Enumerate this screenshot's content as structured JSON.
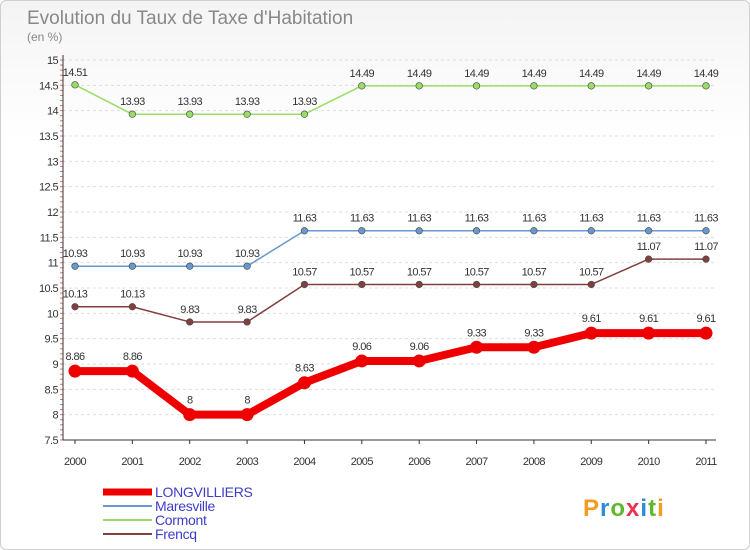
{
  "header": {
    "title": "Evolution du Taux de Taxe d'Habitation",
    "subtitle": "(en %)"
  },
  "logo": {
    "text": "Proxiti",
    "colors": [
      "#f39c1f",
      "#2e8bd8",
      "#5fb830",
      "#e8344e",
      "#2e8bd8",
      "#5fb830",
      "#f39c1f"
    ]
  },
  "chart_data": {
    "type": "line",
    "title": "Evolution du Taux de Taxe d'Habitation",
    "subtitle": "(en %)",
    "xlabel": "",
    "ylabel": "",
    "x": [
      "2000",
      "2001",
      "2002",
      "2003",
      "2004",
      "2005",
      "2006",
      "2007",
      "2008",
      "2009",
      "2010",
      "2011"
    ],
    "ylim": [
      7.5,
      15
    ],
    "yticks": [
      "7.5",
      "8",
      "8.5",
      "9",
      "9.5",
      "10",
      "10.5",
      "11",
      "11.5",
      "12",
      "12.5",
      "13",
      "13.5",
      "14",
      "14.5",
      "15"
    ],
    "grid": "horizontal dashed",
    "legend_position": "bottom-left",
    "series": [
      {
        "name": "Cormont",
        "color": "#99dd66",
        "values": [
          14.51,
          13.93,
          13.93,
          13.93,
          13.93,
          14.49,
          14.49,
          14.49,
          14.49,
          14.49,
          14.49,
          14.49
        ],
        "labels": [
          "14.51",
          "13.93",
          "13.93",
          "13.93",
          "13.93",
          "14.49",
          "14.49",
          "14.49",
          "14.49",
          "14.49",
          "14.49",
          "14.49"
        ]
      },
      {
        "name": "Maresville",
        "color": "#6699cc",
        "values": [
          10.93,
          10.93,
          10.93,
          10.93,
          11.63,
          11.63,
          11.63,
          11.63,
          11.63,
          11.63,
          11.63,
          11.63
        ],
        "labels": [
          "10.93",
          "10.93",
          "10.93",
          "10.93",
          "11.63",
          "11.63",
          "11.63",
          "11.63",
          "11.63",
          "11.63",
          "11.63",
          "11.63"
        ]
      },
      {
        "name": "Frencq",
        "color": "#804040",
        "values": [
          10.13,
          10.13,
          9.83,
          9.83,
          10.57,
          10.57,
          10.57,
          10.57,
          10.57,
          10.57,
          11.07,
          11.07
        ],
        "labels": [
          "10.13",
          "10.13",
          "9.83",
          "9.83",
          "10.57",
          "10.57",
          "10.57",
          "10.57",
          "10.57",
          "10.57",
          "11.07",
          "11.07"
        ]
      },
      {
        "name": "LONGVILLIERS",
        "color": "#ee0000",
        "values": [
          8.86,
          8.86,
          8,
          8,
          8.63,
          9.06,
          9.06,
          9.33,
          9.33,
          9.61,
          9.61,
          9.61
        ],
        "labels": [
          "8.86",
          "8.86",
          "8",
          "8",
          "8.63",
          "9.06",
          "9.06",
          "9.33",
          "9.33",
          "9.61",
          "9.61",
          "9.61"
        ]
      }
    ],
    "legend_order": [
      "LONGVILLIERS",
      "Maresville",
      "Cormont",
      "Frencq"
    ]
  }
}
